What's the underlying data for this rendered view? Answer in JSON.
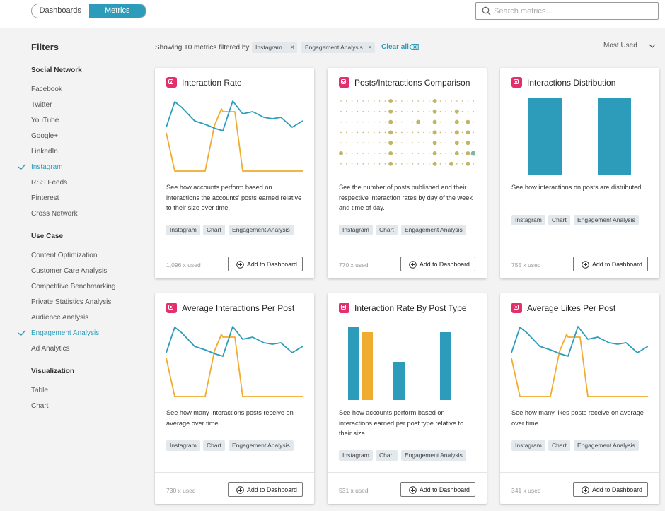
{
  "topbar": {
    "tabs": [
      {
        "label": "Dashboards",
        "active": false
      },
      {
        "label": "Metrics",
        "active": true
      }
    ],
    "search_placeholder": "Search metrics..."
  },
  "sidebar": {
    "title": "Filters",
    "sections": [
      {
        "heading": "Social Network",
        "items": [
          {
            "label": "Facebook",
            "selected": false
          },
          {
            "label": "Twitter",
            "selected": false
          },
          {
            "label": "YouTube",
            "selected": false
          },
          {
            "label": "Google+",
            "selected": false
          },
          {
            "label": "LinkedIn",
            "selected": false
          },
          {
            "label": "Instagram",
            "selected": true
          },
          {
            "label": "RSS Feeds",
            "selected": false
          },
          {
            "label": "Pinterest",
            "selected": false
          },
          {
            "label": "Cross Network",
            "selected": false
          }
        ]
      },
      {
        "heading": "Use Case",
        "items": [
          {
            "label": "Content Optimization",
            "selected": false
          },
          {
            "label": "Customer Care Analysis",
            "selected": false
          },
          {
            "label": "Competitive Benchmarking",
            "selected": false
          },
          {
            "label": "Private Statistics Analysis",
            "selected": false
          },
          {
            "label": "Audience Analysis",
            "selected": false
          },
          {
            "label": "Engagement Analysis",
            "selected": true
          },
          {
            "label": "Ad Analytics",
            "selected": false
          }
        ]
      },
      {
        "heading": "Visualization",
        "items": [
          {
            "label": "Table",
            "selected": false
          },
          {
            "label": "Chart",
            "selected": false
          }
        ]
      }
    ]
  },
  "header": {
    "showing_text": "Showing 10 metrics filtered by",
    "chips": [
      "Instagram",
      "Engagement Analysis"
    ],
    "clear_all": "Clear all",
    "sort_label": "Most Used"
  },
  "colors": {
    "accent": "#2d9cbb",
    "series_blue": "#2d9cbb",
    "series_orange": "#f0ac2f",
    "dot_olive": "#c2b566",
    "instagram": "#e1306c"
  },
  "cards": [
    {
      "title": "Interaction Rate",
      "chart": "line",
      "description": "See how accounts perform based on interactions the accounts' posts earned relative to their size over time.",
      "tags": [
        "Instagram",
        "Chart",
        "Engagement Analysis"
      ],
      "used": "1,096 x used",
      "button": "Add to Dashboard"
    },
    {
      "title": "Posts/Interactions Comparison",
      "chart": "dots",
      "description": "See the number of posts published and their respective interaction rates by day of the week and time of day.",
      "tags": [
        "Instagram",
        "Chart",
        "Engagement Analysis"
      ],
      "used": "770 x used",
      "button": "Add to Dashboard"
    },
    {
      "title": "Interactions Distribution",
      "chart": "bars2",
      "description": "See how interactions on posts are distributed.",
      "tags": [
        "Instagram",
        "Chart",
        "Engagement Analysis"
      ],
      "used": "755 x used",
      "button": "Add to Dashboard"
    },
    {
      "title": "Average Interactions Per Post",
      "chart": "line",
      "description": "See how many interactions posts receive on average over time.",
      "tags": [
        "Instagram",
        "Chart",
        "Engagement Analysis"
      ],
      "used": "730 x used",
      "button": "Add to Dashboard"
    },
    {
      "title": "Interaction Rate By Post Type",
      "chart": "bars4",
      "description": "See how accounts perform based on interactions earned per post type relative to their size.",
      "tags": [
        "Instagram",
        "Chart",
        "Engagement Analysis"
      ],
      "used": "531 x used",
      "button": "Add to Dashboard"
    },
    {
      "title": "Average Likes Per Post",
      "chart": "line",
      "description": "See how many likes posts receive on average over time.",
      "tags": [
        "Instagram",
        "Chart",
        "Engagement Analysis"
      ],
      "used": "341 x used",
      "button": "Add to Dashboard"
    }
  ]
}
